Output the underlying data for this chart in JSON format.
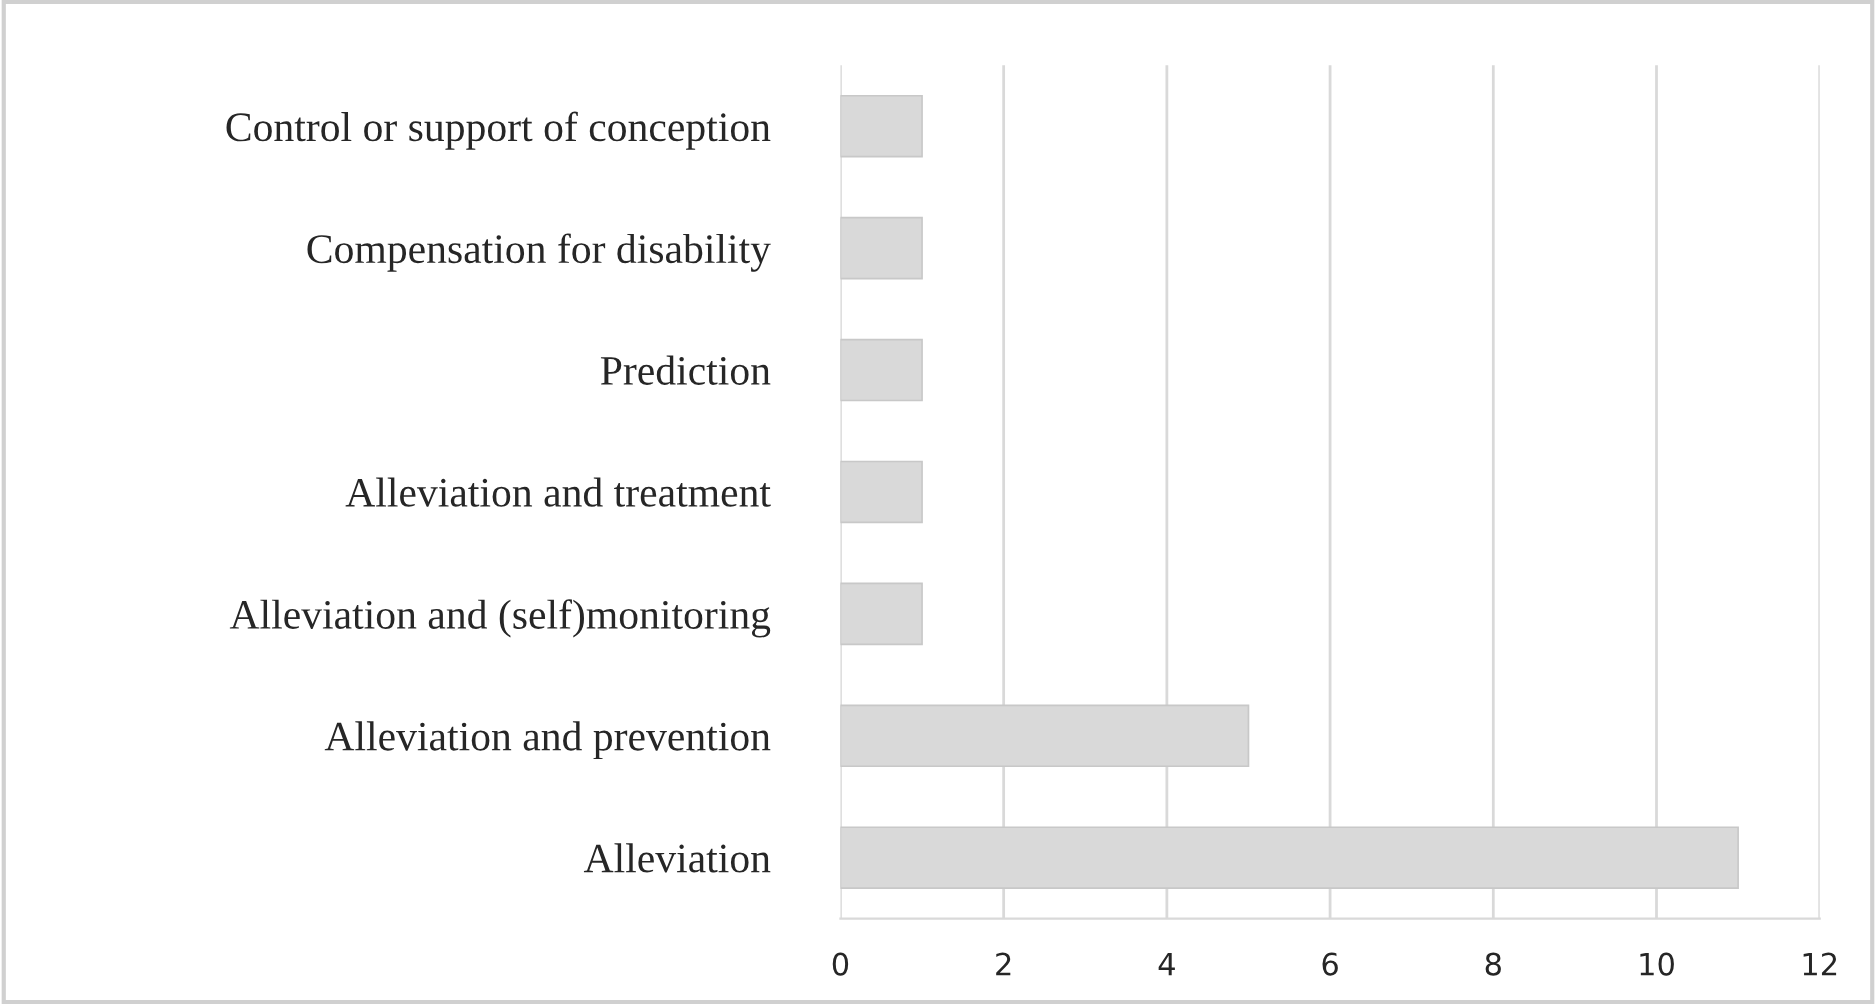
{
  "chart_data": {
    "type": "bar",
    "orientation": "horizontal",
    "categories": [
      "Control or support of conception",
      "Compensation for disability",
      "Prediction",
      "Alleviation and treatment",
      "Alleviation and (self)monitoring",
      "Alleviation and prevention",
      "Alleviation"
    ],
    "values": [
      1,
      1,
      1,
      1,
      1,
      5,
      11
    ],
    "color": "#d9d9d9",
    "xlim": [
      0,
      12
    ],
    "xticks": [
      0,
      2,
      4,
      6,
      8,
      10,
      12
    ],
    "grid": "x"
  }
}
